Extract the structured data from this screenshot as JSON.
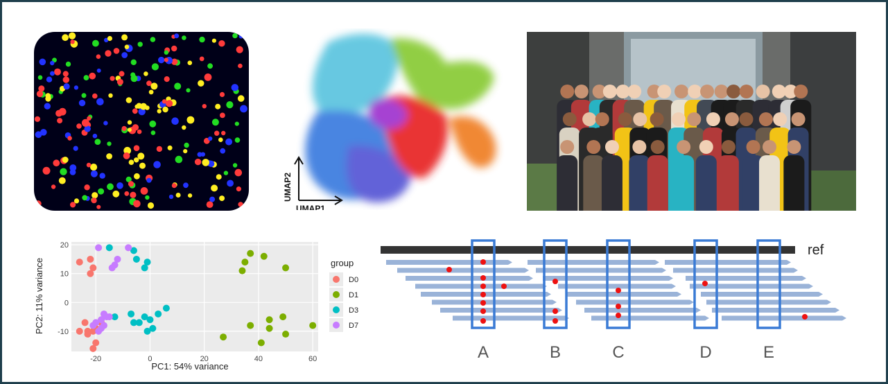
{
  "colors": {
    "frame": "#1f3f4c",
    "microscopy_bg": "#000018",
    "read_blue": "#9ab3d8",
    "ref_bar": "#333333",
    "box_blue": "#3a7bd5",
    "snp_red": "#ee1111",
    "pca_bg": "#ebebeb",
    "D0": "#f8766d",
    "D1": "#7cae00",
    "D3": "#00bfc4",
    "D7": "#c77cff"
  },
  "microscopy": {
    "dot_colors": [
      "#ff3b3b",
      "#22dd22",
      "#2233ff",
      "#ffee22"
    ]
  },
  "umap": {
    "axis_x": "UMAP1",
    "axis_y": "UMAP2"
  },
  "photo": {
    "icon": "group-photo"
  },
  "pca_chart": {
    "chart_data": {
      "type": "scatter",
      "xlabel": "PC1: 54% variance",
      "ylabel": "PC2: 11% variance",
      "xlim": [
        -29,
        62
      ],
      "ylim": [
        -17,
        21
      ],
      "xticks": [
        "-20",
        "0",
        "20",
        "40",
        "60"
      ],
      "xtick_values": [
        -20,
        0,
        20,
        40,
        60
      ],
      "yticks": [
        "20",
        "10",
        "0",
        "-10"
      ],
      "ytick_values": [
        20,
        10,
        0,
        -10
      ],
      "grid": true,
      "legend_title": "group",
      "legend_placement": "right",
      "series": [
        {
          "name": "D0",
          "color": "#f8766d",
          "points": [
            [
              -26,
              14
            ],
            [
              -22,
              15
            ],
            [
              -21,
              12
            ],
            [
              -22,
              10
            ],
            [
              -26,
              -10
            ],
            [
              -24,
              -7
            ],
            [
              -23,
              -10
            ],
            [
              -23,
              -11
            ],
            [
              -21,
              -10
            ],
            [
              -20,
              -9
            ],
            [
              -20,
              -14
            ],
            [
              -21,
              -16
            ],
            [
              -18,
              -7
            ]
          ]
        },
        {
          "name": "D1",
          "color": "#7cae00",
          "points": [
            [
              35,
              14
            ],
            [
              37,
              17
            ],
            [
              42,
              16
            ],
            [
              34,
              11
            ],
            [
              50,
              12
            ],
            [
              37,
              -8
            ],
            [
              44,
              -6
            ],
            [
              44,
              -9
            ],
            [
              49,
              -5
            ],
            [
              50,
              -11
            ],
            [
              60,
              -8
            ],
            [
              41,
              -14
            ],
            [
              27,
              -12
            ]
          ]
        },
        {
          "name": "D3",
          "color": "#00bfc4",
          "points": [
            [
              -15,
              19
            ],
            [
              -6,
              18
            ],
            [
              -5,
              15
            ],
            [
              -1,
              14
            ],
            [
              -2,
              12
            ],
            [
              -13,
              -5
            ],
            [
              -7,
              -4
            ],
            [
              -6,
              -7
            ],
            [
              -4,
              -7
            ],
            [
              -2,
              -5
            ],
            [
              0,
              -6
            ],
            [
              1,
              -9
            ],
            [
              -1,
              -10
            ],
            [
              3,
              -4
            ],
            [
              6,
              -2
            ]
          ]
        },
        {
          "name": "D7",
          "color": "#c77cff",
          "points": [
            [
              -19,
              19
            ],
            [
              -8,
              19
            ],
            [
              -12,
              15
            ],
            [
              -13,
              13
            ],
            [
              -14,
              12
            ],
            [
              -17,
              -4
            ],
            [
              -16,
              -5
            ],
            [
              -15,
              -5
            ],
            [
              -18,
              -6
            ],
            [
              -20,
              -7
            ],
            [
              -21,
              -8
            ],
            [
              -18,
              -9
            ],
            [
              -17,
              -8
            ],
            [
              -19,
              -10
            ]
          ]
        }
      ]
    }
  },
  "reads": {
    "ref_label": "ref",
    "windows": [
      "A",
      "B",
      "C",
      "D",
      "E"
    ]
  }
}
